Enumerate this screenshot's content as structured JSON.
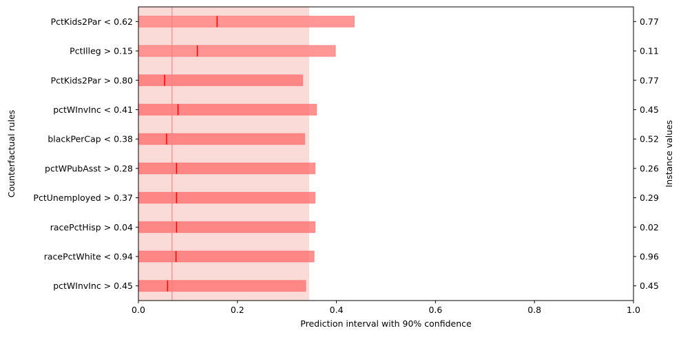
{
  "chart_data": {
    "type": "bar",
    "subtype": "horizontal-interval",
    "title": "",
    "xlabel": "Prediction interval with 90% confidence",
    "ylabel": "Counterfactual rules",
    "ylabel_right": "Instance values",
    "xlim": [
      0.0,
      1.0
    ],
    "xticks": [
      "0.0",
      "0.2",
      "0.4",
      "0.6",
      "0.8",
      "1.0"
    ],
    "grid": false,
    "colors": {
      "bar": "#ff6b6b",
      "bar_highlight": "#ff8c8c",
      "point_line": "#ff0000",
      "band": "#fadbd8",
      "reference_line": "#f08080"
    },
    "reference_band": [
      0.0,
      0.345
    ],
    "reference_line": 0.068,
    "rules": [
      {
        "label": "PctKids2Par < 0.62",
        "instance_value": "0.77",
        "low": 0.0,
        "high": 0.436,
        "point": 0.159,
        "highlight": true
      },
      {
        "label": "PctIlleg > 0.15",
        "instance_value": "0.11",
        "low": 0.0,
        "high": 0.398,
        "point": 0.119,
        "highlight": true
      },
      {
        "label": "PctKids2Par > 0.80",
        "instance_value": "0.77",
        "low": 0.0,
        "high": 0.332,
        "point": 0.053,
        "highlight": false
      },
      {
        "label": "pctWInvInc < 0.41",
        "instance_value": "0.45",
        "low": 0.0,
        "high": 0.36,
        "point": 0.08,
        "highlight": false
      },
      {
        "label": "blackPerCap < 0.38",
        "instance_value": "0.52",
        "low": 0.0,
        "high": 0.336,
        "point": 0.057,
        "highlight": false
      },
      {
        "label": "pctWPubAsst > 0.28",
        "instance_value": "0.26",
        "low": 0.0,
        "high": 0.357,
        "point": 0.077,
        "highlight": false
      },
      {
        "label": "PctUnemployed > 0.37",
        "instance_value": "0.29",
        "low": 0.0,
        "high": 0.357,
        "point": 0.077,
        "highlight": false
      },
      {
        "label": "racePctHisp > 0.04",
        "instance_value": "0.02",
        "low": 0.0,
        "high": 0.357,
        "point": 0.077,
        "highlight": false
      },
      {
        "label": "racePctWhite < 0.94",
        "instance_value": "0.96",
        "low": 0.0,
        "high": 0.355,
        "point": 0.076,
        "highlight": false
      },
      {
        "label": "pctWInvInc > 0.45",
        "instance_value": "0.45",
        "low": 0.0,
        "high": 0.338,
        "point": 0.059,
        "highlight": false
      }
    ]
  }
}
